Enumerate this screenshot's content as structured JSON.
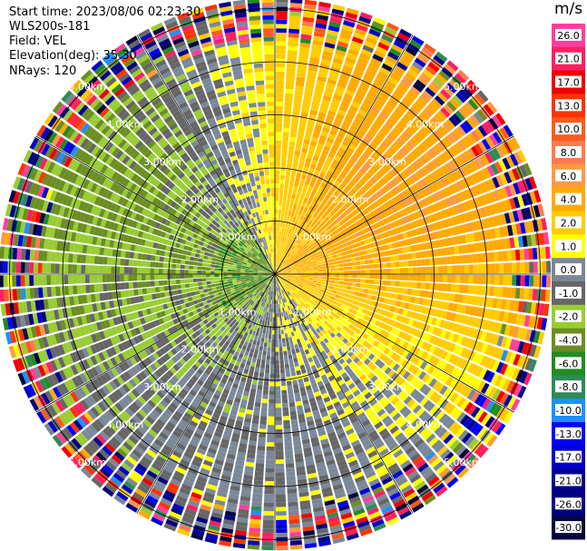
{
  "header": {
    "start_time": "Start time: 2023/08/06 02:23:30",
    "instrument": "WLS200s-181",
    "field": "Field: VEL",
    "elevation": "Elevation(deg): 35.30",
    "nrays": "NRays: 120"
  },
  "chart_data": {
    "type": "heatmap",
    "projection": "polar-ppi",
    "title": "",
    "xlabel": "",
    "ylabel": "",
    "range_rings_km": [
      1,
      2,
      3,
      4,
      5
    ],
    "ring_labels": [
      "1.00km",
      "2.00km",
      "3.00km",
      "4.00km",
      "5.00km"
    ],
    "max_range_km": 5.2,
    "n_rays": 120,
    "colorbar": {
      "label": "m/s",
      "ticks": [
        "26.0",
        "21.0",
        "17.0",
        "13.0",
        "10.0",
        "8.0",
        "6.0",
        "4.0",
        "2.0",
        "1.0",
        "0.0",
        "-1.0",
        "-2.0",
        "-4.0",
        "-6.0",
        "-8.0",
        "-10.0",
        "-13.0",
        "-17.0",
        "-21.0",
        "-26.0",
        "-30.0"
      ],
      "bins": [
        {
          "from": 26,
          "to": 30,
          "color": "#ff3fa0"
        },
        {
          "from": 21,
          "to": 26,
          "color": "#ff1f60"
        },
        {
          "from": 17,
          "to": 21,
          "color": "#ee0000"
        },
        {
          "from": 13,
          "to": 17,
          "color": "#ff3300"
        },
        {
          "from": 10,
          "to": 13,
          "color": "#ff5a20"
        },
        {
          "from": 8,
          "to": 10,
          "color": "#ff7a50"
        },
        {
          "from": 6,
          "to": 8,
          "color": "#ff9a40"
        },
        {
          "from": 4,
          "to": 6,
          "color": "#ffaa00"
        },
        {
          "from": 2,
          "to": 4,
          "color": "#ffcc00"
        },
        {
          "from": 1,
          "to": 2,
          "color": "#ffff00"
        },
        {
          "from": 0,
          "to": 1,
          "color": "#7a8899"
        },
        {
          "from": -1,
          "to": 0,
          "color": "#666666"
        },
        {
          "from": -2,
          "to": -1,
          "color": "#99cc33"
        },
        {
          "from": -4,
          "to": -2,
          "color": "#6b8e23"
        },
        {
          "from": -6,
          "to": -4,
          "color": "#228b22"
        },
        {
          "from": -8,
          "to": -6,
          "color": "#2e8b57"
        },
        {
          "from": -10,
          "to": -8,
          "color": "#1e90ff"
        },
        {
          "from": -13,
          "to": -10,
          "color": "#0000ff"
        },
        {
          "from": -17,
          "to": -13,
          "color": "#0000cd"
        },
        {
          "from": -21,
          "to": -17,
          "color": "#00008b"
        },
        {
          "from": -26,
          "to": -21,
          "color": "#000080"
        },
        {
          "from": -30,
          "to": -26,
          "color": "#050540"
        }
      ]
    },
    "velocity_pattern": "Approximate radial-velocity field: positive (towards sensor, yellow/orange) in the east, northeast and near-north sectors; negative (green) in the west, south and southwest sectors; near-zero (grey) bands in between; noisy multicoloured returns beyond about 4.5 km."
  }
}
